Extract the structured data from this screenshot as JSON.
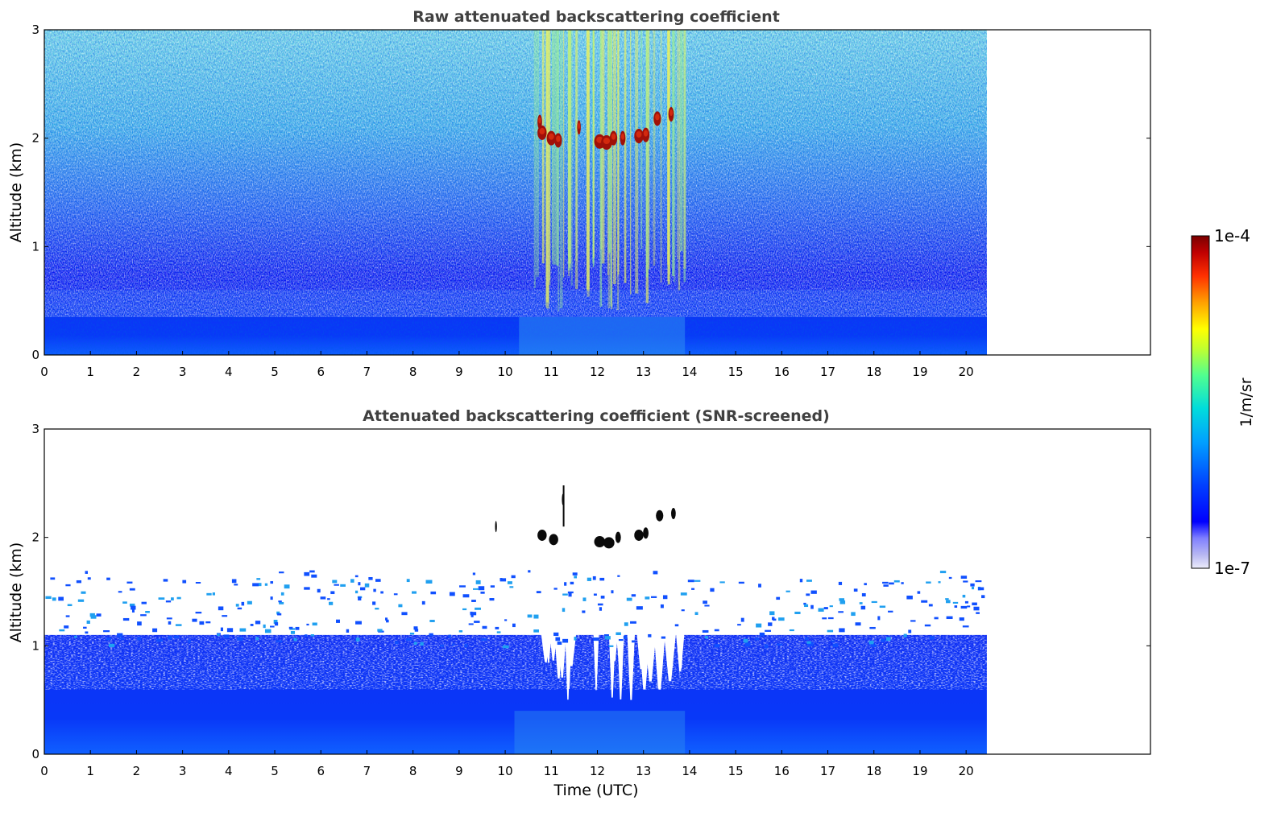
{
  "chart_data": [
    {
      "type": "heatmap",
      "title": "Raw attenuated backscattering coefficient",
      "xlabel": "",
      "ylabel": "Altitude (km)",
      "xlim": [
        0,
        24
      ],
      "ylim": [
        0,
        3
      ],
      "data_extent_x": [
        0,
        20.45
      ],
      "x_ticks": [
        "0",
        "1",
        "2",
        "3",
        "4",
        "5",
        "6",
        "7",
        "8",
        "9",
        "10",
        "11",
        "12",
        "13",
        "14",
        "15",
        "16",
        "17",
        "18",
        "19",
        "20"
      ],
      "y_ticks": [
        "0",
        "1",
        "2",
        "3"
      ],
      "grid": false,
      "features": [
        {
          "name": "boundary layer",
          "altitude_km": [
            0,
            0.6
          ],
          "level": "low (blue)"
        },
        {
          "name": "noise field",
          "altitude_km": [
            0.6,
            3.0
          ],
          "level": "noisy cyan/white"
        },
        {
          "name": "cloud layer",
          "time_utc": [
            10.7,
            13.8
          ],
          "altitude_km": [
            1.95,
            2.3
          ],
          "level": "1e-4 (dark red)"
        }
      ]
    },
    {
      "type": "heatmap",
      "title": "Attenuated backscattering coefficient (SNR-screened)",
      "xlabel": "Time (UTC)",
      "ylabel": "Altitude (km)",
      "xlim": [
        0,
        24
      ],
      "ylim": [
        0,
        3
      ],
      "data_extent_x": [
        0,
        20.45
      ],
      "x_ticks": [
        "0",
        "1",
        "2",
        "3",
        "4",
        "5",
        "6",
        "7",
        "8",
        "9",
        "10",
        "11",
        "12",
        "13",
        "14",
        "15",
        "16",
        "17",
        "18",
        "19",
        "20"
      ],
      "y_ticks": [
        "0",
        "1",
        "2",
        "3"
      ],
      "grid": false,
      "features": [
        {
          "name": "screened boundary layer",
          "altitude_km": [
            0,
            1.1
          ],
          "level": "blue"
        },
        {
          "name": "screened-out gaps",
          "time_utc": [
            10.5,
            13.8
          ],
          "altitude_km": [
            0.5,
            1.1
          ]
        },
        {
          "name": "cloud layer",
          "time_utc": [
            10.7,
            13.8
          ],
          "altitude_km": [
            1.95,
            2.4
          ],
          "level": "saturated (black)"
        }
      ]
    }
  ],
  "colorbar": {
    "label": "1/m/sr",
    "max_label": "1e-4",
    "min_label": "1e-7",
    "scale": "log",
    "colors": [
      "#e6e6fa",
      "#b3b3f0",
      "#7f7fff",
      "#0000ff",
      "#0050ff",
      "#00a0ff",
      "#00e0e0",
      "#60ff90",
      "#c0ff30",
      "#ffff00",
      "#ffa000",
      "#ff3000",
      "#c00000",
      "#800000"
    ]
  }
}
